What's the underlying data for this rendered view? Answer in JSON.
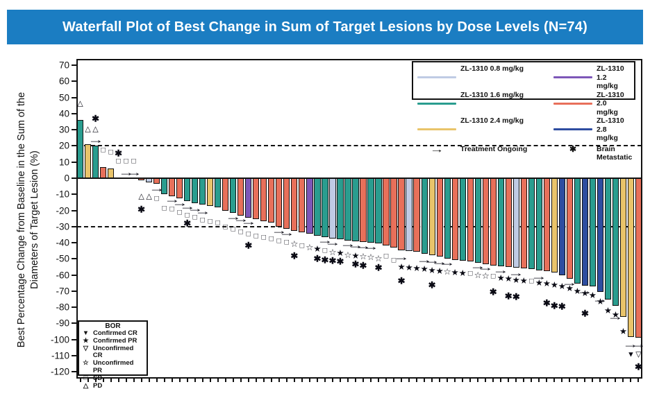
{
  "title": "Waterfall Plot of Best Change in Sum of Target Lesions by Dose Levels (N=74)",
  "colors": {
    "title_bar": "#1b7dc2",
    "dose_0_8": "#bfcbe4",
    "dose_1_2": "#7d57b8",
    "dose_1_6": "#2a9d8f",
    "dose_2_0": "#e8705a",
    "dose_2_4": "#e9c46a",
    "dose_2_8": "#2e4da0"
  },
  "y_axis": {
    "label_line1": "Best Percentage Change from Baseline in the Sum of the",
    "label_line2": "Diameters of Target Lesion (%)",
    "ticks": [
      70,
      60,
      50,
      40,
      30,
      20,
      10,
      0,
      -10,
      -20,
      -30,
      -40,
      -50,
      -60,
      -70,
      -80,
      -90,
      -100,
      -110,
      -120
    ]
  },
  "dose_legend": {
    "entries": [
      {
        "label": "ZL-1310 0.8 mg/kg",
        "dose": "0.8"
      },
      {
        "label": "ZL-1310 1.2 mg/kg",
        "dose": "1.2"
      },
      {
        "label": "ZL-1310 1.6 mg/kg",
        "dose": "1.6"
      },
      {
        "label": "ZL-1310 2.0 mg/kg",
        "dose": "2.0"
      },
      {
        "label": "ZL-1310 2.4 mg/kg",
        "dose": "2.4"
      },
      {
        "label": "ZL-1310 2.8 mg/kg",
        "dose": "2.8"
      }
    ],
    "ongoing_glyph": "→",
    "ongoing_label": "Treatment Ongoing",
    "brain_glyph": "✱",
    "brain_label": "Brain Metastatic"
  },
  "bor_legend": {
    "title": "BOR",
    "items": [
      {
        "glyph": "▼",
        "label": "Confirmed CR"
      },
      {
        "glyph": "★",
        "label": "Confirmed PR"
      },
      {
        "glyph": "▽",
        "label": "Unconfirmed CR"
      },
      {
        "glyph": "☆",
        "label": "Unconfirmed PR"
      },
      {
        "glyph": "□",
        "label": "SD"
      },
      {
        "glyph": "△",
        "label": "PD"
      }
    ]
  },
  "marker_glyphs": {
    "pd": "△",
    "sd": "□",
    "cpr": "★",
    "upr": "☆",
    "ccr": "▼",
    "ucr": "▽",
    "bm": "✱",
    "ar": "→"
  },
  "chart_data": {
    "type": "bar",
    "subtype": "waterfall",
    "n": 74,
    "title": "Waterfall Plot of Best Change in Sum of Target Lesions by Dose Levels (N=74)",
    "ylabel": "Best Percentage Change from Baseline in the Sum of the Diameters of Target Lesion (%)",
    "ylim": [
      -120,
      70
    ],
    "reference_lines": [
      20,
      -30
    ],
    "legend_position": "top-right",
    "bars": [
      {
        "dose": "1.6",
        "value": 36,
        "markers": [
          [
            "pd",
            46
          ]
        ]
      },
      {
        "dose": "2.4",
        "value": 21,
        "markers": [
          [
            "pd",
            30
          ]
        ]
      },
      {
        "dose": "1.6",
        "value": 20,
        "markers": [
          [
            "bm",
            37
          ],
          [
            "pd",
            30
          ],
          [
            "ar",
            23.5
          ]
        ]
      },
      {
        "dose": "2.0",
        "value": 7,
        "markers": [
          [
            "sd",
            17
          ]
        ]
      },
      {
        "dose": "2.4",
        "value": 6,
        "markers": [
          [
            "sd",
            16
          ]
        ]
      },
      {
        "dose": "2.0",
        "value": 0,
        "markers": [
          [
            "bm",
            15.5
          ],
          [
            "sd",
            10.5
          ]
        ]
      },
      {
        "dose": "1.6",
        "value": 0,
        "markers": [
          [
            "sd",
            10.5
          ],
          [
            "ar",
            3.5
          ]
        ]
      },
      {
        "dose": "2.0",
        "value": 0,
        "markers": [
          [
            "sd",
            10.5
          ],
          [
            "ar",
            3.5
          ]
        ]
      },
      {
        "dose": "2.0",
        "value": -1.5,
        "markers": [
          [
            "pd",
            -11.5
          ],
          [
            "bm",
            -19.5
          ]
        ]
      },
      {
        "dose": "0.8",
        "value": -2.5,
        "markers": [
          [
            "pd",
            -11.5
          ]
        ]
      },
      {
        "dose": "2.0",
        "value": -3.5,
        "markers": [
          [
            "ar",
            -6.5
          ],
          [
            "sd",
            -13
          ]
        ]
      },
      {
        "dose": "1.6",
        "value": -10,
        "markers": [
          [
            "sd",
            -19
          ]
        ]
      },
      {
        "dose": "2.0",
        "value": -11,
        "markers": [
          [
            "ar",
            -13.5
          ],
          [
            "sd",
            -19.5
          ]
        ]
      },
      {
        "dose": "2.0",
        "value": -12.5,
        "markers": [
          [
            "ar",
            -15.5
          ],
          [
            "sd",
            -21.5
          ]
        ]
      },
      {
        "dose": "1.6",
        "value": -14,
        "markers": [
          [
            "ar",
            -17.5
          ],
          [
            "sd",
            -23
          ],
          [
            "bm",
            -28
          ]
        ]
      },
      {
        "dose": "1.6",
        "value": -15.5,
        "markers": [
          [
            "ar",
            -19
          ],
          [
            "sd",
            -24.5
          ]
        ]
      },
      {
        "dose": "1.6",
        "value": -16.5,
        "markers": [
          [
            "ar",
            -20.5
          ],
          [
            "sd",
            -26
          ]
        ]
      },
      {
        "dose": "2.4",
        "value": -17,
        "markers": [
          [
            "sd",
            -27
          ]
        ]
      },
      {
        "dose": "1.6",
        "value": -18,
        "markers": [
          [
            "sd",
            -28
          ]
        ]
      },
      {
        "dose": "2.0",
        "value": -20,
        "markers": [
          [
            "sd",
            -30.5
          ]
        ]
      },
      {
        "dose": "1.6",
        "value": -21.5,
        "markers": [
          [
            "ar",
            -24
          ],
          [
            "sd",
            -32
          ]
        ]
      },
      {
        "dose": "2.0",
        "value": -23,
        "markers": [
          [
            "ar",
            -25.5
          ],
          [
            "sd",
            -33.5
          ]
        ]
      },
      {
        "dose": "1.2",
        "value": -24.5,
        "markers": [
          [
            "ar",
            -27
          ],
          [
            "sd",
            -35
          ],
          [
            "bm",
            -41.5
          ]
        ]
      },
      {
        "dose": "2.0",
        "value": -25.5,
        "markers": [
          [
            "sd",
            -36
          ]
        ]
      },
      {
        "dose": "2.0",
        "value": -26.5,
        "markers": [
          [
            "sd",
            -37
          ]
        ]
      },
      {
        "dose": "2.0",
        "value": -27.5,
        "markers": [
          [
            "sd",
            -38
          ]
        ]
      },
      {
        "dose": "2.0",
        "value": -30,
        "markers": [
          [
            "ar",
            -32.5
          ],
          [
            "sd",
            -39
          ]
        ]
      },
      {
        "dose": "2.0",
        "value": -31.5,
        "markers": [
          [
            "ar",
            -34
          ],
          [
            "sd",
            -40
          ]
        ]
      },
      {
        "dose": "2.0",
        "value": -32.5,
        "markers": [
          [
            "upr",
            -41
          ],
          [
            "bm",
            -48
          ]
        ]
      },
      {
        "dose": "2.0",
        "value": -33.5,
        "markers": [
          [
            "sd",
            -42
          ]
        ]
      },
      {
        "dose": "1.2",
        "value": -34.5,
        "markers": [
          [
            "upr",
            -43
          ]
        ]
      },
      {
        "dose": "1.6",
        "value": -35.5,
        "markers": [
          [
            "cpr",
            -44
          ],
          [
            "bm",
            -50
          ]
        ]
      },
      {
        "dose": "1.6",
        "value": -36.5,
        "markers": [
          [
            "ar",
            -38.5
          ],
          [
            "sd",
            -45
          ],
          [
            "bm",
            -50.5
          ]
        ]
      },
      {
        "dose": "0.8",
        "value": -37.5,
        "markers": [
          [
            "ar",
            -40
          ],
          [
            "upr",
            -46
          ],
          [
            "bm",
            -51
          ]
        ]
      },
      {
        "dose": "1.6",
        "value": -38,
        "markers": [
          [
            "cpr",
            -46.5
          ],
          [
            "bm",
            -51.5
          ]
        ]
      },
      {
        "dose": "1.6",
        "value": -38.5,
        "markers": [
          [
            "ar",
            -41
          ],
          [
            "upr",
            -47.5
          ]
        ]
      },
      {
        "dose": "1.6",
        "value": -39,
        "markers": [
          [
            "ar",
            -41.5
          ],
          [
            "cpr",
            -48
          ],
          [
            "bm",
            -53.5
          ]
        ]
      },
      {
        "dose": "2.0",
        "value": -39.5,
        "markers": [
          [
            "ar",
            -42
          ],
          [
            "upr",
            -48.5
          ],
          [
            "bm",
            -54
          ]
        ]
      },
      {
        "dose": "1.6",
        "value": -40,
        "markers": [
          [
            "ar",
            -42.5
          ],
          [
            "upr",
            -49
          ]
        ]
      },
      {
        "dose": "1.6",
        "value": -40.5,
        "markers": [
          [
            "upr",
            -50
          ],
          [
            "bm",
            -55.5
          ]
        ]
      },
      {
        "dose": "2.0",
        "value": -41.5,
        "markers": [
          [
            "sd",
            -48.5
          ]
        ]
      },
      {
        "dose": "2.0",
        "value": -43,
        "markers": [
          [
            "sd",
            -51
          ]
        ]
      },
      {
        "dose": "2.0",
        "value": -44.5,
        "markers": [
          [
            "ar",
            -49
          ],
          [
            "cpr",
            -55
          ],
          [
            "bm",
            -63.5
          ]
        ]
      },
      {
        "dose": "0.8",
        "value": -45,
        "markers": [
          [
            "cpr",
            -55.5
          ]
        ]
      },
      {
        "dose": "2.0",
        "value": -45.5,
        "markers": [
          [
            "cpr",
            -56
          ]
        ]
      },
      {
        "dose": "1.6",
        "value": -47,
        "markers": [
          [
            "ar",
            -50.5
          ],
          [
            "cpr",
            -56.5
          ]
        ]
      },
      {
        "dose": "2.4",
        "value": -47.5,
        "markers": [
          [
            "ar",
            -51
          ],
          [
            "cpr",
            -57
          ],
          [
            "bm",
            -66
          ]
        ]
      },
      {
        "dose": "2.0",
        "value": -48.5,
        "markers": [
          [
            "ar",
            -52
          ],
          [
            "cpr",
            -57.5
          ]
        ]
      },
      {
        "dose": "1.6",
        "value": -50,
        "markers": [
          [
            "ar",
            -52.5
          ],
          [
            "upr",
            -58
          ]
        ]
      },
      {
        "dose": "2.0",
        "value": -50.5,
        "markers": [
          [
            "cpr",
            -58.5
          ]
        ]
      },
      {
        "dose": "1.6",
        "value": -51,
        "markers": [
          [
            "cpr",
            -59
          ]
        ]
      },
      {
        "dose": "2.0",
        "value": -51.5,
        "markers": [
          [
            "sd",
            -59.5
          ]
        ]
      },
      {
        "dose": "1.6",
        "value": -52.5,
        "markers": [
          [
            "ar",
            -54.5
          ],
          [
            "upr",
            -60
          ]
        ]
      },
      {
        "dose": "2.0",
        "value": -53.5,
        "markers": [
          [
            "ar",
            -55.5
          ],
          [
            "upr",
            -60.5
          ]
        ]
      },
      {
        "dose": "2.0",
        "value": -54,
        "markers": [
          [
            "sd",
            -61
          ],
          [
            "bm",
            -70.5
          ]
        ]
      },
      {
        "dose": "1.6",
        "value": -54.5,
        "markers": [
          [
            "ar",
            -57
          ],
          [
            "cpr",
            -62
          ]
        ]
      },
      {
        "dose": "2.0",
        "value": -55,
        "markers": [
          [
            "cpr",
            -62.5
          ],
          [
            "bm",
            -73
          ]
        ]
      },
      {
        "dose": "0.8",
        "value": -55.5,
        "markers": [
          [
            "ar",
            -59
          ],
          [
            "cpr",
            -63
          ],
          [
            "bm",
            -73.5
          ]
        ]
      },
      {
        "dose": "2.0",
        "value": -56,
        "markers": [
          [
            "cpr",
            -63.5
          ]
        ]
      },
      {
        "dose": "1.6",
        "value": -56.5,
        "markers": [
          [
            "sd",
            -64
          ]
        ]
      },
      {
        "dose": "1.6",
        "value": -57,
        "markers": [
          [
            "ar",
            -61
          ],
          [
            "cpr",
            -65
          ]
        ]
      },
      {
        "dose": "2.0",
        "value": -57.5,
        "markers": [
          [
            "cpr",
            -65.5
          ],
          [
            "bm",
            -77.5
          ]
        ]
      },
      {
        "dose": "2.4",
        "value": -58.5,
        "markers": [
          [
            "cpr",
            -66
          ],
          [
            "bm",
            -79
          ]
        ]
      },
      {
        "dose": "2.8",
        "value": -60,
        "markers": [
          [
            "cpr",
            -67
          ],
          [
            "bm",
            -79.5
          ]
        ]
      },
      {
        "dose": "2.0",
        "value": -62.5,
        "markers": [
          [
            "ar",
            -65
          ],
          [
            "cpr",
            -68.5
          ]
        ]
      },
      {
        "dose": "1.6",
        "value": -65.5,
        "markers": [
          [
            "cpr",
            -70
          ]
        ]
      },
      {
        "dose": "2.8",
        "value": -66.5,
        "markers": [
          [
            "ar",
            -70
          ],
          [
            "cpr",
            -71.5
          ],
          [
            "bm",
            -84
          ]
        ]
      },
      {
        "dose": "1.6",
        "value": -67,
        "markers": [
          [
            "cpr",
            -72.5
          ]
        ]
      },
      {
        "dose": "2.8",
        "value": -70.5,
        "markers": [
          [
            "ar",
            -75
          ],
          [
            "cpr",
            -76.5
          ]
        ]
      },
      {
        "dose": "1.6",
        "value": -75,
        "markers": [
          [
            "cpr",
            -82
          ]
        ]
      },
      {
        "dose": "1.6",
        "value": -79,
        "markers": [
          [
            "ar",
            -86
          ],
          [
            "cpr",
            -84.5
          ]
        ]
      },
      {
        "dose": "2.4",
        "value": -86,
        "markers": [
          [
            "cpr",
            -95
          ]
        ]
      },
      {
        "dose": "2.4",
        "value": -98.5,
        "markers": [
          [
            "ar",
            -103
          ],
          [
            "ccr",
            -109.5
          ]
        ]
      },
      {
        "dose": "2.0",
        "value": -99,
        "markers": [
          [
            "ar",
            -103
          ],
          [
            "ucr",
            -109.5
          ],
          [
            "bm",
            -117
          ]
        ]
      }
    ]
  }
}
